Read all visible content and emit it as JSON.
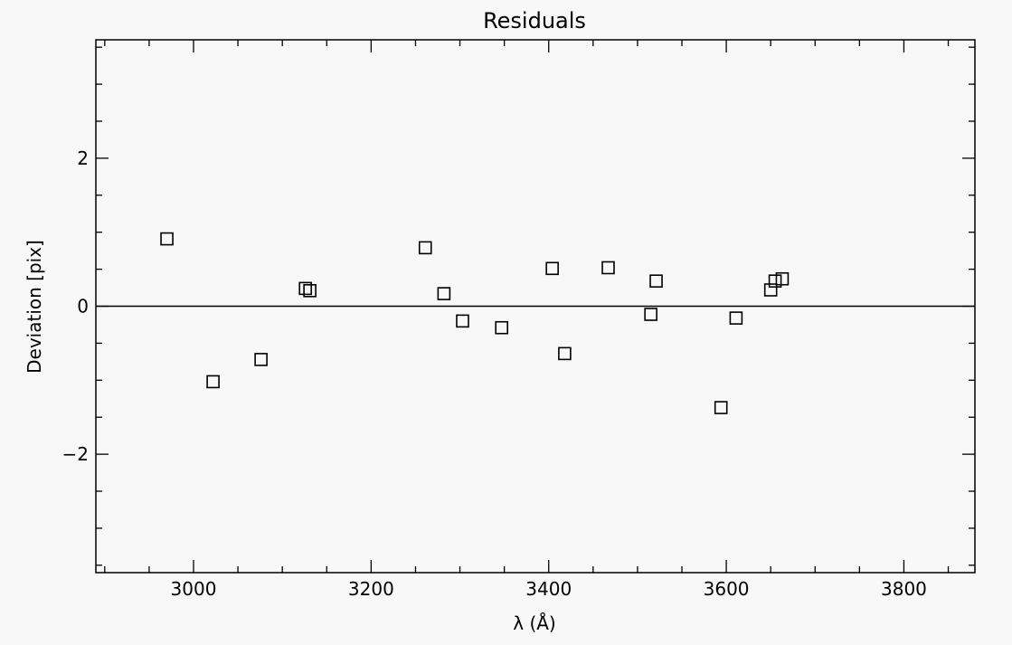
{
  "chart_data": {
    "type": "scatter",
    "title": "Residuals",
    "xlabel": "λ (Å)",
    "ylabel": "Deviation [pix]",
    "xlim": [
      2890,
      3880
    ],
    "ylim": [
      -3.6,
      3.6
    ],
    "x_major_ticks": [
      3000,
      3200,
      3400,
      3600,
      3800
    ],
    "x_minor_step": 50,
    "y_major_ticks": [
      -2,
      0,
      2
    ],
    "y_minor_step": 0.5,
    "grid": false,
    "reference_line_y": 0,
    "marker": "open-square",
    "points": [
      {
        "x": 2970,
        "y": 0.91
      },
      {
        "x": 3022,
        "y": -1.02
      },
      {
        "x": 3076,
        "y": -0.72
      },
      {
        "x": 3126,
        "y": 0.24
      },
      {
        "x": 3131,
        "y": 0.21
      },
      {
        "x": 3261,
        "y": 0.79
      },
      {
        "x": 3282,
        "y": 0.17
      },
      {
        "x": 3303,
        "y": -0.2
      },
      {
        "x": 3347,
        "y": -0.29
      },
      {
        "x": 3404,
        "y": 0.51
      },
      {
        "x": 3418,
        "y": -0.64
      },
      {
        "x": 3467,
        "y": 0.52
      },
      {
        "x": 3515,
        "y": -0.11
      },
      {
        "x": 3521,
        "y": 0.34
      },
      {
        "x": 3594,
        "y": -1.37
      },
      {
        "x": 3611,
        "y": -0.16
      },
      {
        "x": 3650,
        "y": 0.22
      },
      {
        "x": 3655,
        "y": 0.34
      },
      {
        "x": 3663,
        "y": 0.37
      }
    ]
  }
}
